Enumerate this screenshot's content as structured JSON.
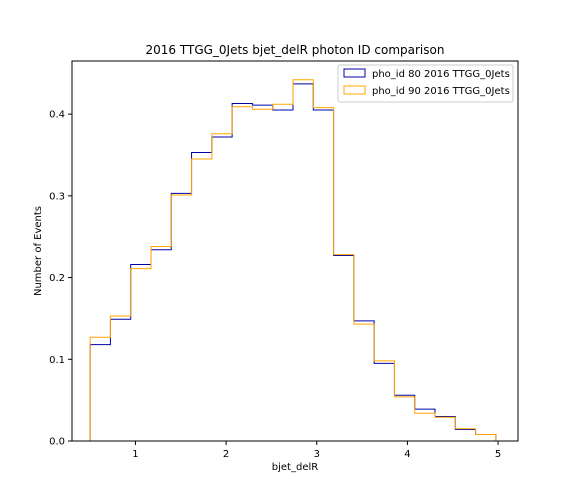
{
  "chart_data": {
    "type": "step",
    "title": "2016 TTGG_0Jets bjet_delR photon ID comparison",
    "xlabel": "bjet_delR",
    "ylabel": "Number of Events",
    "xlim": [
      0.3,
      5.22
    ],
    "ylim": [
      0.0,
      0.465
    ],
    "xticks": [
      1,
      2,
      3,
      4,
      5
    ],
    "yticks": [
      0.0,
      0.1,
      0.2,
      0.3,
      0.4
    ],
    "grid": false,
    "legend_position": "top-right",
    "bin_edges": [
      0.5,
      0.7238,
      0.9476,
      1.1714,
      1.3952,
      1.619,
      1.8428,
      2.0666,
      2.2904,
      2.5142,
      2.738,
      2.9618,
      3.1856,
      3.4094,
      3.6332,
      3.857,
      4.0808,
      4.3046,
      4.5284,
      4.7522,
      4.976
    ],
    "series": [
      {
        "name": "pho_id 80 2016 TTGG_0Jets",
        "color": "#0000aa",
        "values": [
          0.118,
          0.149,
          0.216,
          0.234,
          0.303,
          0.353,
          0.372,
          0.413,
          0.411,
          0.405,
          0.437,
          0.405,
          0.227,
          0.147,
          0.095,
          0.056,
          0.039,
          0.03,
          0.014,
          0.008
        ]
      },
      {
        "name": "pho_id 90 2016 TTGG_0Jets",
        "color": "#ffa500",
        "values": [
          0.127,
          0.153,
          0.211,
          0.238,
          0.301,
          0.345,
          0.376,
          0.409,
          0.406,
          0.412,
          0.442,
          0.408,
          0.228,
          0.143,
          0.098,
          0.054,
          0.034,
          0.029,
          0.015,
          0.008
        ]
      }
    ]
  }
}
